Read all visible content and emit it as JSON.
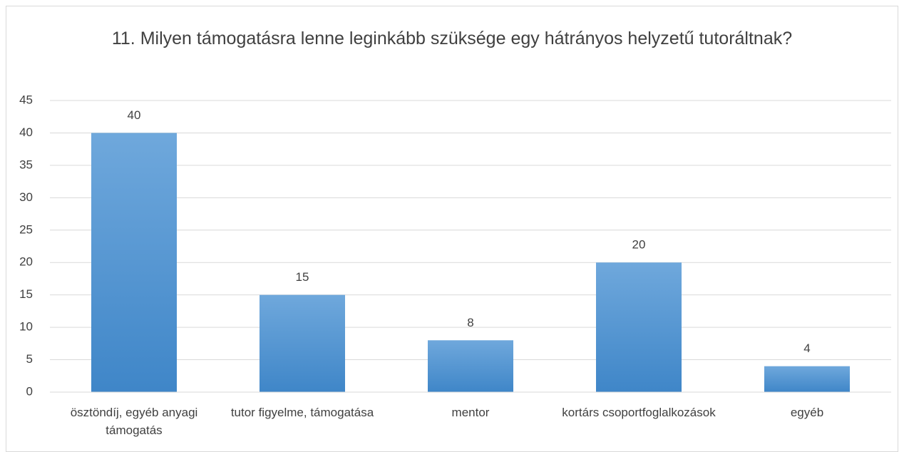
{
  "chart_data": {
    "type": "bar",
    "title": "11. Milyen támogatásra lenne leginkább szüksége egy hátrányos helyzetű tutoráltnak?",
    "categories": [
      "ösztöndíj, egyéb anyagi támogatás",
      "tutor figyelme, támogatása",
      "mentor",
      "kortárs csoportfoglalkozások",
      "egyéb"
    ],
    "values": [
      40,
      15,
      8,
      20,
      4
    ],
    "color": "#5b9bd5",
    "ylim": [
      0,
      45
    ],
    "yticks": [
      0,
      5,
      10,
      15,
      20,
      25,
      30,
      35,
      40,
      45
    ],
    "grid": true
  }
}
